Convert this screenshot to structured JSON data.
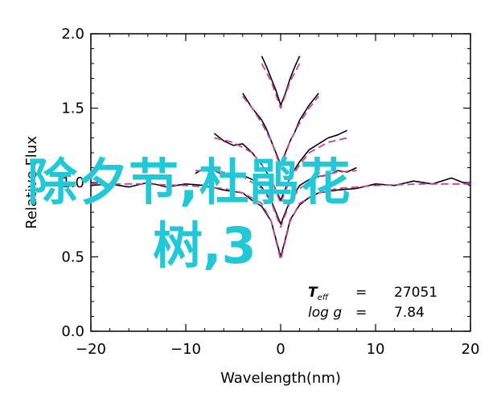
{
  "chart_data": {
    "type": "line",
    "title": "",
    "xlabel": "Wavelength(nm)",
    "ylabel": "Relative Flux",
    "xlim": [
      -20,
      20
    ],
    "ylim": [
      0.0,
      2.0
    ],
    "xticks": [
      "-20",
      "-10",
      "0",
      "10",
      "20"
    ],
    "yticks": [
      "0.0",
      "0.5",
      "1.0",
      "1.5",
      "2.0"
    ],
    "grid": false,
    "annotation": {
      "line1_label": "T",
      "line1_sub": "eff",
      "line1_eq": "=",
      "line1_value": "27051",
      "line2_label": "log g",
      "line2_eq": "=",
      "line2_value": "7.84"
    },
    "series": [
      {
        "color": "#000000",
        "offset": 0.0,
        "x": [
          -20,
          -18,
          -16,
          -14,
          -12,
          -10,
          -8,
          -6,
          -4,
          -3,
          -2,
          -1,
          -0.5,
          0,
          0.5,
          1,
          2,
          3,
          4,
          6,
          8,
          10,
          12,
          14,
          16,
          18,
          20
        ],
        "y": [
          0.98,
          0.99,
          0.97,
          1.0,
          0.97,
          0.99,
          0.98,
          0.95,
          0.93,
          0.88,
          0.84,
          0.74,
          0.62,
          0.5,
          0.62,
          0.75,
          0.85,
          0.9,
          0.93,
          0.95,
          0.96,
          0.99,
          0.98,
          1.01,
          0.99,
          1.03,
          0.98
        ]
      },
      {
        "color": "#cc3ea0",
        "offset": 0.0,
        "x": [
          -20,
          -15,
          -10,
          -6,
          -4,
          -2,
          -1,
          0,
          1,
          2,
          4,
          6,
          10,
          15,
          20
        ],
        "y": [
          0.99,
          0.99,
          0.98,
          0.96,
          0.93,
          0.86,
          0.74,
          0.48,
          0.74,
          0.86,
          0.93,
          0.96,
          0.98,
          0.99,
          0.99
        ]
      },
      {
        "color": "#000000",
        "x": [
          -9,
          -8,
          -7,
          -6,
          -5,
          -4,
          -3,
          -2,
          -1,
          -0.5,
          0,
          0.5,
          1,
          2,
          3,
          4,
          5,
          6,
          7,
          8
        ],
        "y": [
          1.06,
          1.1,
          1.08,
          1.05,
          1.03,
          1.05,
          1.02,
          0.97,
          0.88,
          0.8,
          0.72,
          0.8,
          0.88,
          0.98,
          1.02,
          1.04,
          1.05,
          1.08,
          1.07,
          1.1
        ]
      },
      {
        "color": "#cc3ea0",
        "x": [
          -9,
          -6,
          -4,
          -2,
          -1,
          0,
          1,
          2,
          4,
          6,
          8
        ],
        "y": [
          1.08,
          1.07,
          1.04,
          0.96,
          0.87,
          0.7,
          0.87,
          0.96,
          1.04,
          1.07,
          1.08
        ]
      },
      {
        "color": "#000000",
        "x": [
          -7,
          -6,
          -5,
          -4,
          -3,
          -2,
          -1,
          -0.5,
          0,
          0.5,
          1,
          2,
          3,
          4,
          5,
          6,
          7
        ],
        "y": [
          1.33,
          1.28,
          1.25,
          1.26,
          1.2,
          1.12,
          1.02,
          0.95,
          0.88,
          0.96,
          1.04,
          1.14,
          1.22,
          1.26,
          1.3,
          1.32,
          1.35
        ]
      },
      {
        "color": "#cc3ea0",
        "x": [
          -7,
          -5,
          -3,
          -2,
          -1,
          0,
          1,
          2,
          3,
          5,
          7
        ],
        "y": [
          1.3,
          1.27,
          1.2,
          1.12,
          1.02,
          0.86,
          1.02,
          1.12,
          1.2,
          1.27,
          1.3
        ]
      },
      {
        "color": "#000000",
        "x": [
          -4,
          -3,
          -2,
          -1.5,
          -1,
          -0.5,
          0,
          0.5,
          1,
          1.5,
          2,
          3,
          4
        ],
        "y": [
          1.6,
          1.5,
          1.42,
          1.36,
          1.28,
          1.2,
          1.12,
          1.2,
          1.28,
          1.34,
          1.42,
          1.52,
          1.6
        ]
      },
      {
        "color": "#cc3ea0",
        "x": [
          -4,
          -3,
          -2,
          -1,
          0,
          1,
          2,
          3,
          4
        ],
        "y": [
          1.58,
          1.5,
          1.4,
          1.28,
          1.1,
          1.28,
          1.4,
          1.5,
          1.58
        ]
      },
      {
        "color": "#000000",
        "x": [
          -2,
          -1.5,
          -1,
          -0.5,
          0,
          0.5,
          1,
          1.5,
          2
        ],
        "y": [
          1.85,
          1.78,
          1.7,
          1.62,
          1.52,
          1.6,
          1.7,
          1.78,
          1.85
        ]
      },
      {
        "color": "#cc3ea0",
        "x": [
          -2,
          -1,
          0,
          1,
          2
        ],
        "y": [
          1.8,
          1.68,
          1.5,
          1.68,
          1.8
        ]
      }
    ]
  },
  "overlay": {
    "line1": "除夕节,杜鹃花",
    "line2": "树,3"
  }
}
